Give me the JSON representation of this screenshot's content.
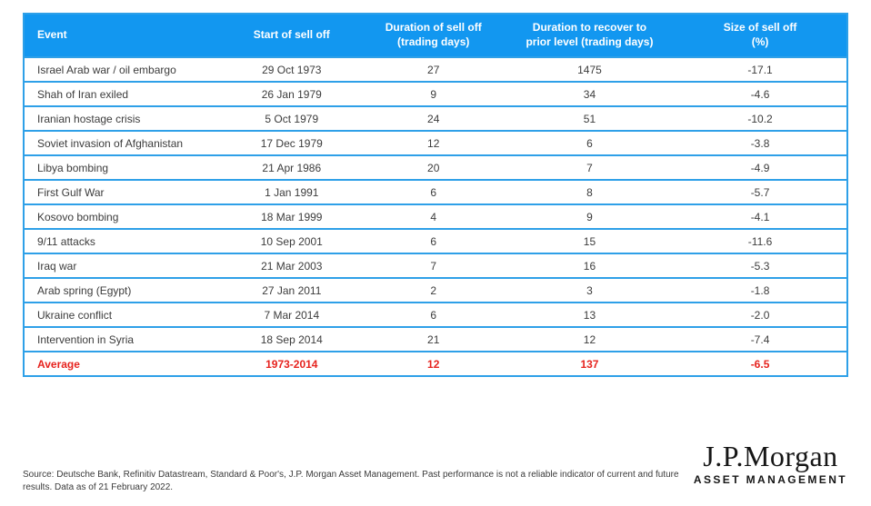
{
  "chart_data": {
    "type": "table",
    "columns": [
      {
        "key": "event",
        "label": "Event"
      },
      {
        "key": "start",
        "label": "Start of sell off"
      },
      {
        "key": "selloff",
        "label": "Duration of sell off\n(trading days)"
      },
      {
        "key": "recover",
        "label": "Duration to recover to\nprior level (trading days)"
      },
      {
        "key": "size",
        "label": "Size of sell off\n(%)"
      }
    ],
    "rows": [
      {
        "event": "Israel Arab war / oil embargo",
        "start": "29 Oct 1973",
        "selloff": "27",
        "recover": "1475",
        "size": "-17.1"
      },
      {
        "event": "Shah of Iran exiled",
        "start": "26 Jan 1979",
        "selloff": "9",
        "recover": "34",
        "size": "-4.6"
      },
      {
        "event": "Iranian hostage crisis",
        "start": "5 Oct 1979",
        "selloff": "24",
        "recover": "51",
        "size": "-10.2"
      },
      {
        "event": "Soviet invasion of Afghanistan",
        "start": "17 Dec 1979",
        "selloff": "12",
        "recover": "6",
        "size": "-3.8"
      },
      {
        "event": "Libya bombing",
        "start": "21 Apr 1986",
        "selloff": "20",
        "recover": "7",
        "size": "-4.9"
      },
      {
        "event": "First Gulf War",
        "start": "1 Jan 1991",
        "selloff": "6",
        "recover": "8",
        "size": "-5.7"
      },
      {
        "event": "Kosovo bombing",
        "start": "18 Mar 1999",
        "selloff": "4",
        "recover": "9",
        "size": "-4.1"
      },
      {
        "event": "9/11 attacks",
        "start": "10 Sep 2001",
        "selloff": "6",
        "recover": "15",
        "size": "-11.6"
      },
      {
        "event": "Iraq war",
        "start": "21 Mar 2003",
        "selloff": "7",
        "recover": "16",
        "size": "-5.3"
      },
      {
        "event": "Arab spring (Egypt)",
        "start": "27 Jan 2011",
        "selloff": "2",
        "recover": "3",
        "size": "-1.8"
      },
      {
        "event": "Ukraine conflict",
        "start": "7 Mar 2014",
        "selloff": "6",
        "recover": "13",
        "size": "-2.0"
      },
      {
        "event": "Intervention in Syria",
        "start": "18 Sep 2014",
        "selloff": "21",
        "recover": "12",
        "size": "-7.4"
      },
      {
        "event": "Average",
        "start": "1973-2014",
        "selloff": "12",
        "recover": "137",
        "size": "-6.5",
        "average": true
      }
    ]
  },
  "footer": {
    "source": "Source: Deutsche Bank, Refinitiv Datastream, Standard & Poor's, J.P. Morgan Asset Management. Past performance is not a reliable indicator of current and future results. Data as of 21 February 2022."
  },
  "logo": {
    "wordmark": "J.P.Morgan",
    "subtitle": "ASSET MANAGEMENT"
  },
  "colors": {
    "header_bg": "#1297f0",
    "table_border": "#2ea0e8",
    "row_text": "#3c3c3c",
    "average_red": "#e6231e",
    "logo_text": "#161616"
  }
}
